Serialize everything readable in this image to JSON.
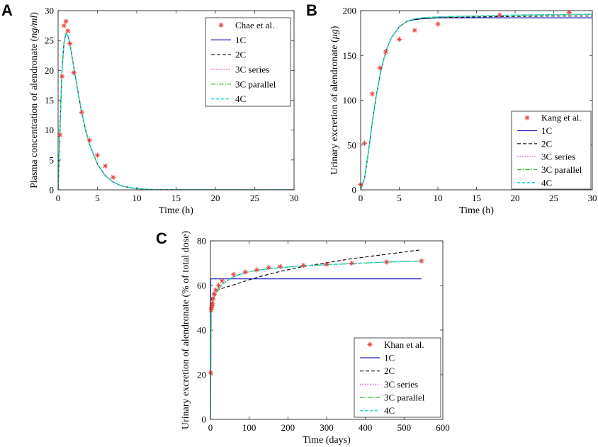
{
  "colors": {
    "data": "#e8423f",
    "1C": "#1f1fbf",
    "2C": "#111111",
    "3C series": "#cc33cc",
    "3C parallel": "#22bb22",
    "4C": "#22dddd"
  },
  "chart_data": [
    {
      "id": "A",
      "panel_label": "A",
      "type": "line",
      "xlabel": "Time (h)",
      "ylabel": "Plasma concentration of alendronate (",
      "ylabel_units": "ng/ml",
      "ylabel_close": ")",
      "xlim": [
        0,
        30
      ],
      "ylim": [
        0,
        30
      ],
      "xticks": [
        0,
        5,
        10,
        15,
        20,
        25,
        30
      ],
      "yticks": [
        0,
        5,
        10,
        15,
        20,
        25,
        30
      ],
      "legend_position": "top-right",
      "legend_entries": [
        "Chae et al.",
        "1C",
        "2C",
        "3C series",
        "3C parallel",
        "4C"
      ],
      "observed": {
        "name": "Chae et al.",
        "x": [
          0.25,
          0.5,
          0.75,
          1.0,
          1.25,
          1.5,
          2.0,
          3.0,
          4.0,
          5.0,
          6.0,
          7.0
        ],
        "y": [
          9.2,
          19.0,
          27.5,
          28.2,
          26.6,
          24.5,
          19.6,
          13.0,
          8.3,
          5.8,
          4.0,
          2.1
        ]
      },
      "model_x": [
        0,
        0.25,
        0.5,
        0.75,
        1.0,
        1.25,
        1.5,
        2.0,
        2.5,
        3.0,
        3.5,
        4.0,
        5.0,
        6.0,
        7.0,
        8.0,
        9.0,
        10.0,
        12.0,
        15.0,
        20.0,
        25.0,
        30.0
      ],
      "series": [
        {
          "name": "1C",
          "values": [
            0,
            11.0,
            20.0,
            24.6,
            26.2,
            25.8,
            24.4,
            20.5,
            16.5,
            13.0,
            10.0,
            7.6,
            4.3,
            2.4,
            1.3,
            0.7,
            0.4,
            0.2,
            0.05,
            0.01,
            0,
            0,
            0
          ]
        },
        {
          "name": "2C",
          "values": [
            0,
            11.0,
            20.0,
            24.6,
            26.2,
            25.8,
            24.4,
            20.5,
            16.5,
            13.0,
            10.0,
            7.6,
            4.3,
            2.4,
            1.3,
            0.7,
            0.4,
            0.2,
            0.05,
            0.01,
            0,
            0,
            0
          ]
        },
        {
          "name": "3C series",
          "values": [
            0,
            11.0,
            20.0,
            24.6,
            26.2,
            25.8,
            24.4,
            20.5,
            16.5,
            13.0,
            10.0,
            7.6,
            4.3,
            2.4,
            1.3,
            0.7,
            0.4,
            0.2,
            0.05,
            0.01,
            0,
            0,
            0
          ]
        },
        {
          "name": "3C parallel",
          "values": [
            0,
            11.0,
            20.0,
            24.6,
            26.2,
            25.8,
            24.4,
            20.5,
            16.5,
            13.0,
            10.0,
            7.6,
            4.3,
            2.4,
            1.3,
            0.7,
            0.4,
            0.2,
            0.05,
            0.01,
            0,
            0,
            0
          ]
        },
        {
          "name": "4C",
          "values": [
            0,
            11.0,
            20.0,
            24.6,
            26.2,
            25.8,
            24.4,
            20.5,
            16.5,
            13.0,
            10.0,
            7.6,
            4.3,
            2.4,
            1.3,
            0.7,
            0.4,
            0.2,
            0.05,
            0.01,
            0,
            0,
            0
          ]
        }
      ]
    },
    {
      "id": "B",
      "panel_label": "B",
      "type": "line",
      "xlabel": "Time (h)",
      "ylabel": "Urinary excretion of alendronate (",
      "ylabel_units": "μg",
      "ylabel_close": ")",
      "xlim": [
        0,
        30
      ],
      "ylim": [
        0,
        200
      ],
      "xticks": [
        0,
        5,
        10,
        15,
        20,
        25,
        30
      ],
      "yticks": [
        0,
        50,
        100,
        150,
        200
      ],
      "legend_position": "right",
      "legend_entries": [
        "Kang et al.",
        "1C",
        "2C",
        "3C series",
        "3C parallel",
        "4C"
      ],
      "observed": {
        "name": "Kang et al.",
        "x": [
          0,
          0.5,
          1.5,
          2.5,
          3.25,
          5.0,
          7.0,
          10.0,
          18.0,
          27.0
        ],
        "y": [
          6,
          52,
          107,
          136,
          154,
          168,
          178,
          185,
          195,
          198
        ]
      },
      "model_x": [
        0,
        0.5,
        1.0,
        1.5,
        2.0,
        2.5,
        3.0,
        3.5,
        4.0,
        5.0,
        6.0,
        7.0,
        8.0,
        10.0,
        12.0,
        15.0,
        20.0,
        25.0,
        30.0
      ],
      "series": [
        {
          "name": "1C",
          "values": [
            0,
            13,
            42,
            75,
            104,
            128,
            146,
            160,
            170,
            182,
            188,
            190,
            191,
            192,
            192,
            192,
            192,
            192,
            192
          ]
        },
        {
          "name": "2C",
          "values": [
            0,
            13,
            42,
            75,
            104,
            128,
            146,
            160,
            170,
            182,
            188,
            190,
            191,
            192,
            192.5,
            193,
            193.5,
            194,
            194
          ]
        },
        {
          "name": "3C series",
          "values": [
            0,
            13,
            42,
            75,
            104,
            128,
            146,
            160,
            170,
            182,
            188,
            191,
            192,
            193,
            193.5,
            194,
            195,
            195.5,
            196
          ]
        },
        {
          "name": "3C parallel",
          "values": [
            0,
            13,
            42,
            75,
            104,
            128,
            146,
            160,
            170,
            182,
            188,
            191,
            192,
            193,
            193.5,
            194,
            195,
            195.5,
            196
          ]
        },
        {
          "name": "4C",
          "values": [
            0,
            13,
            42,
            75,
            104,
            128,
            146,
            160,
            170,
            182,
            188,
            191,
            192,
            193,
            193.5,
            194,
            195,
            195.5,
            196
          ]
        }
      ]
    },
    {
      "id": "C",
      "panel_label": "C",
      "type": "line",
      "xlabel": "Time (days)",
      "ylabel": "Urinary excretion of alendronate (% of total dose)",
      "xlim": [
        0,
        600
      ],
      "ylim": [
        0,
        80
      ],
      "xticks": [
        0,
        100,
        200,
        300,
        400,
        500,
        600
      ],
      "yticks": [
        0,
        20,
        40,
        60,
        80
      ],
      "legend_position": "bottom-right",
      "legend_entries": [
        "Khan et al.",
        "1C",
        "2C",
        "3C series",
        "3C parallel",
        "4C"
      ],
      "observed": {
        "name": "Khan et al.",
        "x": [
          1,
          2,
          3,
          4,
          5,
          7,
          10,
          14,
          21,
          30,
          60,
          90,
          120,
          150,
          180,
          240,
          300,
          365,
          455,
          545
        ],
        "y": [
          21,
          49,
          50,
          51,
          52,
          54,
          56,
          58,
          60,
          62,
          65,
          66,
          67,
          68,
          68.5,
          69,
          69.5,
          70,
          70.5,
          71
        ]
      },
      "model_x": [
        0,
        1,
        2,
        4,
        7,
        10,
        20,
        30,
        60,
        90,
        120,
        150,
        180,
        240,
        300,
        365,
        455,
        545
      ],
      "series": [
        {
          "name": "1C",
          "values": [
            0,
            63,
            63,
            63,
            63,
            63,
            63,
            63,
            63,
            63,
            63,
            63,
            63,
            63,
            63,
            63,
            63,
            63
          ]
        },
        {
          "name": "2C",
          "values": [
            0,
            45,
            52,
            55,
            56.5,
            57,
            58,
            58.7,
            60.3,
            62,
            63.6,
            65,
            66.3,
            68.5,
            70.2,
            72,
            74,
            76
          ]
        },
        {
          "name": "3C series",
          "values": [
            0,
            22,
            48,
            51,
            53,
            55.5,
            58,
            60.5,
            64,
            65.8,
            66.8,
            67.5,
            68,
            68.8,
            69.3,
            69.8,
            70.5,
            71
          ]
        },
        {
          "name": "3C parallel",
          "values": [
            0,
            22,
            48,
            51,
            53,
            55.5,
            58,
            60.5,
            64,
            65.8,
            66.8,
            67.5,
            68,
            68.8,
            69.3,
            69.8,
            70.5,
            71
          ]
        },
        {
          "name": "4C",
          "values": [
            0,
            22,
            48,
            51,
            53,
            55.5,
            58,
            60.5,
            64,
            65.8,
            66.8,
            67.5,
            68,
            68.8,
            69.3,
            69.8,
            70.5,
            71
          ]
        }
      ]
    }
  ]
}
